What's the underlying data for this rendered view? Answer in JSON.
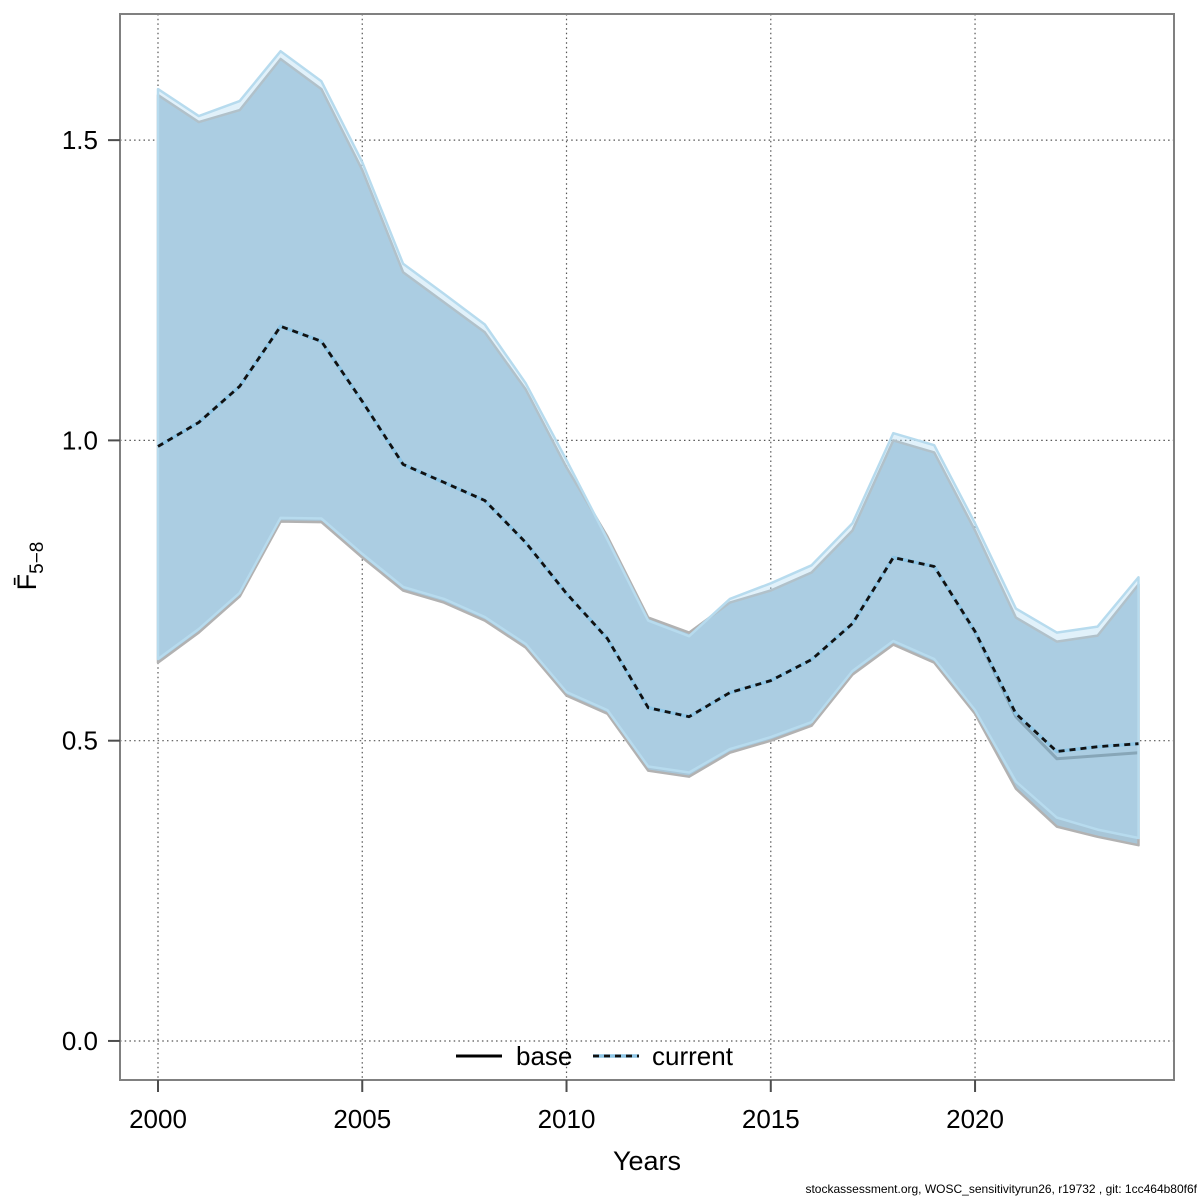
{
  "chart_data": {
    "type": "line",
    "description": "Fishing mortality time series with confidence bands for two model runs",
    "x": [
      2000,
      2001,
      2002,
      2003,
      2004,
      2005,
      2006,
      2007,
      2008,
      2009,
      2010,
      2011,
      2012,
      2013,
      2014,
      2015,
      2016,
      2017,
      2018,
      2019,
      2020,
      2021,
      2022,
      2023,
      2024
    ],
    "series": [
      {
        "name": "base",
        "mean": [
          0.99,
          1.03,
          1.09,
          1.19,
          1.165,
          1.065,
          0.96,
          0.93,
          0.9,
          0.83,
          0.745,
          0.67,
          0.555,
          0.54,
          0.58,
          0.6,
          0.635,
          0.695,
          0.805,
          0.79,
          0.68,
          0.54,
          0.47,
          0.475,
          0.48
        ],
        "upper": [
          1.575,
          1.53,
          1.55,
          1.635,
          1.585,
          1.45,
          1.28,
          1.23,
          1.18,
          1.085,
          0.955,
          0.84,
          0.705,
          0.68,
          0.73,
          0.75,
          0.78,
          0.85,
          1.0,
          0.98,
          0.85,
          0.705,
          0.665,
          0.675,
          0.76
        ],
        "lower": [
          0.63,
          0.68,
          0.74,
          0.865,
          0.864,
          0.805,
          0.75,
          0.73,
          0.7,
          0.655,
          0.575,
          0.545,
          0.45,
          0.44,
          0.48,
          0.5,
          0.525,
          0.61,
          0.66,
          0.63,
          0.545,
          0.42,
          0.357,
          0.34,
          0.326
        ]
      },
      {
        "name": "current",
        "mean": [
          0.99,
          1.03,
          1.09,
          1.19,
          1.165,
          1.065,
          0.96,
          0.93,
          0.9,
          0.83,
          0.745,
          0.67,
          0.555,
          0.54,
          0.58,
          0.6,
          0.635,
          0.695,
          0.805,
          0.79,
          0.682,
          0.545,
          0.482,
          0.49,
          0.495
        ],
        "upper": [
          1.585,
          1.54,
          1.565,
          1.648,
          1.598,
          1.463,
          1.294,
          1.244,
          1.193,
          1.095,
          0.967,
          0.835,
          0.7,
          0.674,
          0.736,
          0.762,
          0.792,
          0.862,
          1.012,
          0.992,
          0.862,
          0.72,
          0.68,
          0.69,
          0.772
        ],
        "lower": [
          0.636,
          0.686,
          0.746,
          0.871,
          0.87,
          0.811,
          0.756,
          0.736,
          0.706,
          0.661,
          0.581,
          0.551,
          0.457,
          0.447,
          0.486,
          0.506,
          0.531,
          0.616,
          0.666,
          0.636,
          0.551,
          0.432,
          0.372,
          0.352,
          0.338
        ]
      }
    ],
    "xlabel": "Years",
    "ylabel_main": "F̄",
    "ylabel_sub": "5−8",
    "x_ticks": [
      2000,
      2005,
      2010,
      2015,
      2020
    ],
    "x_tick_labels": [
      "2000",
      "2005",
      "2010",
      "2015",
      "2020"
    ],
    "y_ticks": [
      0.0,
      0.5,
      1.0,
      1.5
    ],
    "y_tick_labels": [
      "0.0",
      "0.5",
      "1.0",
      "1.5"
    ],
    "x_range": [
      1999.07,
      2024.87
    ],
    "y_range": [
      -0.065,
      1.71
    ],
    "grid": true,
    "legend_position": "bottom-center-inside",
    "legend": [
      {
        "label": "base",
        "line_style": "solid-black"
      },
      {
        "label": "current",
        "line_style": "dashed-blue-black"
      }
    ],
    "footer": "stockassessment.org, WOSC_sensitivityrun26, r19732 , git: 1cc464b80f6f",
    "colors": {
      "band_base_fill": "#a8c6d8",
      "band_base_stroke": "#b2b2b2",
      "band_current_fill": "rgba(176,217,241,0.38)",
      "band_current_stroke": "#b7dbee",
      "line_base": "#6f8795",
      "line_current_blue": "#8ec6e6",
      "line_current_dash": "#111111",
      "legend_base_line": "#000000",
      "frame": "#808080",
      "grid": "#555555",
      "tick": "#4d4d4d",
      "text": "#000000",
      "footer_text": "#333333"
    }
  }
}
